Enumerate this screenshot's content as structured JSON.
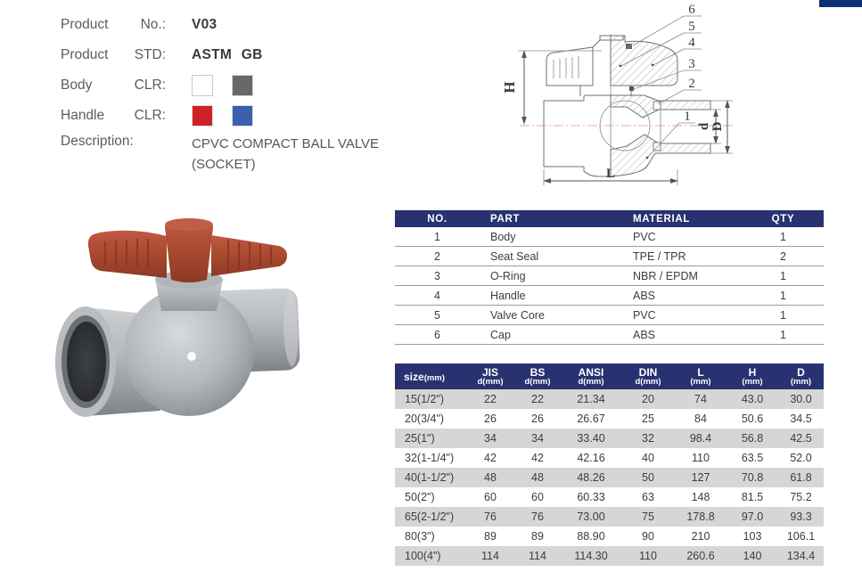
{
  "page": {
    "title": "CPVC Compact Ball Valve Catalog Page"
  },
  "colors": {
    "accent_navy": "#283271",
    "corner_navy": "#0b2f73",
    "alt_row_gray": "#d6d6d6",
    "body_swatches": [
      "#ffffff",
      "#686868"
    ],
    "handle_swatches": [
      "#cf2127",
      "#3a61ab"
    ],
    "render_handle_red": "#a8492f",
    "render_body_gray": "#b4b8bc"
  },
  "product_info": {
    "product_no_label": "Product No.:",
    "product_no_value": "V03",
    "product_std_label": "Product STD:",
    "product_std_value": "ASTM GB",
    "body_clr_label": "Body CLR:",
    "handle_clr_label": "Handle CLR:",
    "description_label": "Description:",
    "description_value": "CPVC COMPACT BALL VALVE (SOCKET)"
  },
  "diagram": {
    "callouts": [
      "6",
      "5",
      "4",
      "3",
      "2",
      "1"
    ],
    "dim_h": "H",
    "dim_l": "L",
    "dim_d": "d",
    "dim_outer_d": "D"
  },
  "parts_table": {
    "header": [
      "NO.",
      "PART",
      "MATERIAL",
      "QTY"
    ],
    "rows": [
      [
        "1",
        "Body",
        "PVC",
        "1"
      ],
      [
        "2",
        "Seat Seal",
        "TPE / TPR",
        "2"
      ],
      [
        "3",
        "O-Ring",
        "NBR / EPDM",
        "1"
      ],
      [
        "4",
        "Handle",
        "ABS",
        "1"
      ],
      [
        "5",
        "Valve Core",
        "PVC",
        "1"
      ],
      [
        "6",
        "Cap",
        "ABS",
        "1"
      ]
    ]
  },
  "size_table": {
    "header": [
      {
        "top": "size",
        "sub": "(mm)"
      },
      {
        "top": "JIS",
        "sub": "d(mm)"
      },
      {
        "top": "BS",
        "sub": "d(mm)"
      },
      {
        "top": "ANSI",
        "sub": "d(mm)"
      },
      {
        "top": "DIN",
        "sub": "d(mm)"
      },
      {
        "top": "L",
        "sub": "(mm)"
      },
      {
        "top": "H",
        "sub": "(mm)"
      },
      {
        "top": "D",
        "sub": "(mm)"
      }
    ],
    "rows": [
      [
        "15(1/2\")",
        "22",
        "22",
        "21.34",
        "20",
        "74",
        "43.0",
        "30.0"
      ],
      [
        "20(3/4\")",
        "26",
        "26",
        "26.67",
        "25",
        "84",
        "50.6",
        "34.5"
      ],
      [
        "25(1\")",
        "34",
        "34",
        "33.40",
        "32",
        "98.4",
        "56.8",
        "42.5"
      ],
      [
        "32(1-1/4\")",
        "42",
        "42",
        "42.16",
        "40",
        "110",
        "63.5",
        "52.0"
      ],
      [
        "40(1-1/2\")",
        "48",
        "48",
        "48.26",
        "50",
        "127",
        "70.8",
        "61.8"
      ],
      [
        "50(2\")",
        "60",
        "60",
        "60.33",
        "63",
        "148",
        "81.5",
        "75.2"
      ],
      [
        "65(2-1/2\")",
        "76",
        "76",
        "73.00",
        "75",
        "178.8",
        "97.0",
        "93.3"
      ],
      [
        "80(3\")",
        "89",
        "89",
        "88.90",
        "90",
        "210",
        "103",
        "106.1"
      ],
      [
        "100(4\")",
        "114",
        "114",
        "114.30",
        "110",
        "260.6",
        "140",
        "134.4"
      ]
    ]
  }
}
